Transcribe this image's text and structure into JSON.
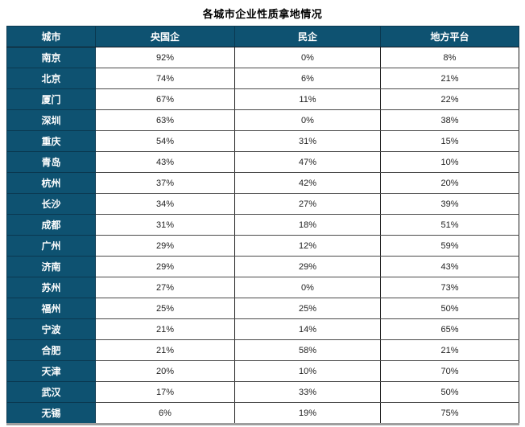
{
  "title": "各城市企业性质拿地情况",
  "colors": {
    "header_bg": "#0E5271",
    "header_text": "#FFFFFF",
    "cell_text": "#1F1F1F",
    "grid_line": "#4A4A4A",
    "outer_border": "#1C1C1C",
    "bottom_strip": "#9E9E9E"
  },
  "table": {
    "columns": [
      "城市",
      "央国企",
      "民企",
      "地方平台"
    ],
    "rows": [
      {
        "city": "南京",
        "values": [
          "92%",
          "0%",
          "8%"
        ]
      },
      {
        "city": "北京",
        "values": [
          "74%",
          "6%",
          "21%"
        ]
      },
      {
        "city": "厦门",
        "values": [
          "67%",
          "11%",
          "22%"
        ]
      },
      {
        "city": "深圳",
        "values": [
          "63%",
          "0%",
          "38%"
        ]
      },
      {
        "city": "重庆",
        "values": [
          "54%",
          "31%",
          "15%"
        ]
      },
      {
        "city": "青岛",
        "values": [
          "43%",
          "47%",
          "10%"
        ]
      },
      {
        "city": "杭州",
        "values": [
          "37%",
          "42%",
          "20%"
        ]
      },
      {
        "city": "长沙",
        "values": [
          "34%",
          "27%",
          "39%"
        ]
      },
      {
        "city": "成都",
        "values": [
          "31%",
          "18%",
          "51%"
        ]
      },
      {
        "city": "广州",
        "values": [
          "29%",
          "12%",
          "59%"
        ]
      },
      {
        "city": "济南",
        "values": [
          "29%",
          "29%",
          "43%"
        ]
      },
      {
        "city": "苏州",
        "values": [
          "27%",
          "0%",
          "73%"
        ]
      },
      {
        "city": "福州",
        "values": [
          "25%",
          "25%",
          "50%"
        ]
      },
      {
        "city": "宁波",
        "values": [
          "21%",
          "14%",
          "65%"
        ]
      },
      {
        "city": "合肥",
        "values": [
          "21%",
          "58%",
          "21%"
        ]
      },
      {
        "city": "天津",
        "values": [
          "20%",
          "10%",
          "70%"
        ]
      },
      {
        "city": "武汉",
        "values": [
          "17%",
          "33%",
          "50%"
        ]
      },
      {
        "city": "无锡",
        "values": [
          "6%",
          "19%",
          "75%"
        ]
      }
    ]
  },
  "chart_data": {
    "type": "table",
    "title": "各城市企业性质拿地情况",
    "categories": [
      "南京",
      "北京",
      "厦门",
      "深圳",
      "重庆",
      "青岛",
      "杭州",
      "长沙",
      "成都",
      "广州",
      "济南",
      "苏州",
      "福州",
      "宁波",
      "合肥",
      "天津",
      "武汉",
      "无锡"
    ],
    "series": [
      {
        "name": "央国企",
        "values": [
          92,
          74,
          67,
          63,
          54,
          43,
          37,
          34,
          31,
          29,
          29,
          27,
          25,
          21,
          21,
          20,
          17,
          6
        ]
      },
      {
        "name": "民企",
        "values": [
          0,
          6,
          11,
          0,
          31,
          47,
          42,
          27,
          18,
          12,
          29,
          0,
          25,
          14,
          58,
          10,
          33,
          19
        ]
      },
      {
        "name": "地方平台",
        "values": [
          8,
          21,
          22,
          38,
          15,
          10,
          20,
          39,
          51,
          59,
          43,
          73,
          50,
          65,
          21,
          70,
          50,
          75
        ]
      }
    ],
    "unit": "%"
  }
}
